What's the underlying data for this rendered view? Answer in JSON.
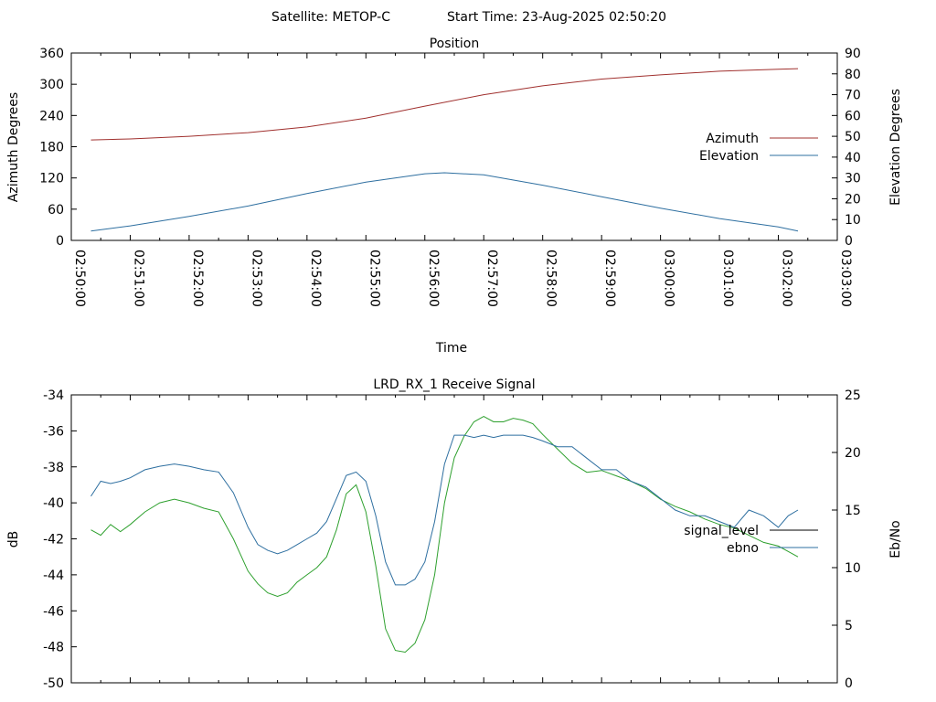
{
  "header": {
    "satellite": "Satellite: METOP-C",
    "start_time": "Start Time: 23-Aug-2025 02:50:20"
  },
  "chart_data": [
    {
      "type": "line",
      "title": "Position",
      "xlabel": "Time",
      "ylabel": "Azimuth Degrees",
      "y2label": "Elevation Degrees",
      "xlim": [
        "02:50:00",
        "03:03:00"
      ],
      "x_ticks": [
        "02:50:00",
        "02:51:00",
        "02:52:00",
        "02:53:00",
        "02:54:00",
        "02:55:00",
        "02:56:00",
        "02:57:00",
        "02:58:00",
        "02:59:00",
        "03:00:00",
        "03:01:00",
        "03:02:00",
        "03:03:00"
      ],
      "ylim": [
        0,
        360
      ],
      "y_ticks": [
        0,
        60,
        120,
        180,
        240,
        300,
        360
      ],
      "y2lim": [
        0,
        90
      ],
      "y2_ticks": [
        0,
        10,
        20,
        30,
        40,
        50,
        60,
        70,
        80,
        90
      ],
      "legend": "right",
      "series": [
        {
          "name": "Azimuth",
          "axis": "y",
          "color": "#a0302e",
          "x": [
            "02:50:20",
            "02:51:00",
            "02:52:00",
            "02:53:00",
            "02:54:00",
            "02:55:00",
            "02:56:00",
            "02:57:00",
            "02:58:00",
            "02:59:00",
            "03:00:00",
            "03:01:00",
            "03:02:00",
            "03:02:20"
          ],
          "values": [
            193,
            195,
            200,
            207,
            218,
            235,
            258,
            280,
            297,
            310,
            318,
            325,
            329,
            330
          ]
        },
        {
          "name": "Elevation",
          "axis": "y2",
          "color": "#2e6fa0",
          "x": [
            "02:50:20",
            "02:51:00",
            "02:52:00",
            "02:53:00",
            "02:54:00",
            "02:55:00",
            "02:56:00",
            "02:56:20",
            "02:57:00",
            "02:58:00",
            "02:59:00",
            "03:00:00",
            "03:01:00",
            "03:02:00",
            "03:02:20"
          ],
          "values": [
            4.5,
            7,
            11.5,
            16.5,
            22.5,
            28,
            32,
            32.5,
            31.5,
            26.5,
            21,
            15.5,
            10.5,
            6.5,
            4.5
          ]
        }
      ]
    },
    {
      "type": "line",
      "title": "LRD_RX_1 Receive Signal",
      "xlabel": "",
      "ylabel": "dB",
      "y2label": "Eb/No",
      "xlim": [
        "02:50:00",
        "03:03:00"
      ],
      "ylim": [
        -50,
        -34
      ],
      "y_ticks": [
        -50,
        -48,
        -46,
        -44,
        -42,
        -40,
        -38,
        -36,
        -34
      ],
      "y2lim": [
        0,
        25
      ],
      "y2_ticks": [
        0,
        5,
        10,
        15,
        20,
        25
      ],
      "legend": "right",
      "series": [
        {
          "name": "signal_level",
          "axis": "y",
          "color": "#2ea02e",
          "legend_color": "#000000",
          "x": [
            "02:50:20",
            "02:50:30",
            "02:50:40",
            "02:50:50",
            "02:51:00",
            "02:51:15",
            "02:51:30",
            "02:51:45",
            "02:52:00",
            "02:52:15",
            "02:52:30",
            "02:52:45",
            "02:53:00",
            "02:53:10",
            "02:53:20",
            "02:53:30",
            "02:53:40",
            "02:53:50",
            "02:54:00",
            "02:54:10",
            "02:54:20",
            "02:54:30",
            "02:54:40",
            "02:54:50",
            "02:55:00",
            "02:55:10",
            "02:55:20",
            "02:55:30",
            "02:55:40",
            "02:55:50",
            "02:56:00",
            "02:56:10",
            "02:56:20",
            "02:56:30",
            "02:56:40",
            "02:56:50",
            "02:57:00",
            "02:57:10",
            "02:57:20",
            "02:57:30",
            "02:57:40",
            "02:57:50",
            "02:58:00",
            "02:58:15",
            "02:58:30",
            "02:58:45",
            "02:59:00",
            "02:59:15",
            "02:59:30",
            "02:59:45",
            "03:00:00",
            "03:00:15",
            "03:00:30",
            "03:00:45",
            "03:01:00",
            "03:01:15",
            "03:01:30",
            "03:01:45",
            "03:02:00",
            "03:02:10",
            "03:02:20"
          ],
          "values": [
            -41.5,
            -41.8,
            -41.2,
            -41.6,
            -41.2,
            -40.5,
            -40.0,
            -39.8,
            -40.0,
            -40.3,
            -40.5,
            -42.0,
            -43.8,
            -44.5,
            -45.0,
            -45.2,
            -45.0,
            -44.4,
            -44.0,
            -43.6,
            -43.0,
            -41.5,
            -39.5,
            -39.0,
            -40.5,
            -43.5,
            -47.0,
            -48.2,
            -48.3,
            -47.8,
            -46.5,
            -44.0,
            -40.0,
            -37.5,
            -36.3,
            -35.5,
            -35.2,
            -35.5,
            -35.5,
            -35.3,
            -35.4,
            -35.6,
            -36.2,
            -37.0,
            -37.8,
            -38.3,
            -38.2,
            -38.5,
            -38.8,
            -39.2,
            -39.8,
            -40.2,
            -40.5,
            -40.9,
            -41.2,
            -41.4,
            -41.8,
            -42.2,
            -42.4,
            -42.7,
            -43.0
          ]
        },
        {
          "name": "ebno",
          "axis": "y2",
          "color": "#2e6fa0",
          "x": [
            "02:50:20",
            "02:50:30",
            "02:50:40",
            "02:50:50",
            "02:51:00",
            "02:51:15",
            "02:51:30",
            "02:51:45",
            "02:52:00",
            "02:52:15",
            "02:52:30",
            "02:52:45",
            "02:53:00",
            "02:53:10",
            "02:53:20",
            "02:53:30",
            "02:53:40",
            "02:53:50",
            "02:54:00",
            "02:54:10",
            "02:54:20",
            "02:54:30",
            "02:54:40",
            "02:54:50",
            "02:55:00",
            "02:55:10",
            "02:55:20",
            "02:55:30",
            "02:55:40",
            "02:55:50",
            "02:56:00",
            "02:56:10",
            "02:56:20",
            "02:56:30",
            "02:56:40",
            "02:56:50",
            "02:57:00",
            "02:57:10",
            "02:57:20",
            "02:57:30",
            "02:57:40",
            "02:57:50",
            "02:58:00",
            "02:58:15",
            "02:58:30",
            "02:58:45",
            "02:59:00",
            "02:59:15",
            "02:59:30",
            "02:59:45",
            "03:00:00",
            "03:00:15",
            "03:00:30",
            "03:00:45",
            "03:01:00",
            "03:01:15",
            "03:01:30",
            "03:01:45",
            "03:02:00",
            "03:02:10",
            "03:02:20"
          ],
          "values": [
            16.2,
            17.5,
            17.3,
            17.5,
            17.8,
            18.5,
            18.8,
            19.0,
            18.8,
            18.5,
            18.3,
            16.5,
            13.5,
            12.0,
            11.5,
            11.2,
            11.5,
            12.0,
            12.5,
            13.0,
            14.0,
            16.0,
            18.0,
            18.3,
            17.5,
            14.5,
            10.5,
            8.5,
            8.5,
            9.0,
            10.5,
            14.0,
            19.0,
            21.5,
            21.5,
            21.3,
            21.5,
            21.3,
            21.5,
            21.5,
            21.5,
            21.3,
            21.0,
            20.5,
            20.5,
            19.5,
            18.5,
            18.5,
            17.5,
            17.0,
            16.0,
            15.0,
            14.5,
            14.5,
            14.0,
            13.5,
            15.0,
            14.5,
            13.5,
            14.5,
            15.0
          ]
        }
      ]
    }
  ]
}
